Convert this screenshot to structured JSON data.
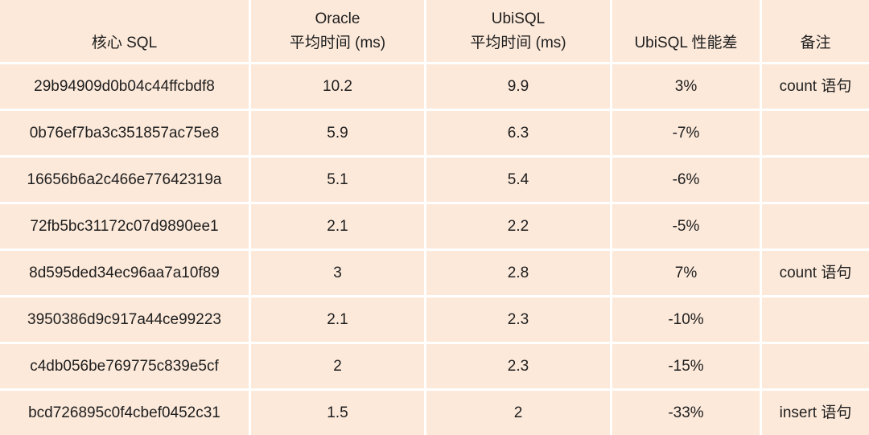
{
  "table": {
    "header": [
      "核心 SQL",
      "Oracle\n平均时间 (ms)",
      "UbiSQL\n平均时间 (ms)",
      "UbiSQL 性能差",
      "备注"
    ],
    "rows": [
      {
        "sql": "29b94909d0b04c44ffcbdf8",
        "oracle": "10.2",
        "ubisql": "9.9",
        "diff": "3%",
        "note": "count 语句"
      },
      {
        "sql": "0b76ef7ba3c351857ac75e8",
        "oracle": "5.9",
        "ubisql": "6.3",
        "diff": "-7%"
      },
      {
        "sql": "16656b6a2c466e77642319a",
        "oracle": "5.1",
        "ubisql": "5.4",
        "diff": "-6%"
      },
      {
        "sql": "72fb5bc31172c07d9890ee1",
        "oracle": "2.1",
        "ubisql": "2.2",
        "diff": "-5%"
      },
      {
        "sql": "8d595ded34ec96aa7a10f89",
        "oracle": "3",
        "ubisql": "2.8",
        "diff": "7%",
        "note": "count 语句"
      },
      {
        "sql": "3950386d9c917a44ce99223",
        "oracle": "2.1",
        "ubisql": "2.3",
        "diff": "-10%"
      },
      {
        "sql": "c4db056be769775c839e5cf",
        "oracle": "2",
        "ubisql": "2.3",
        "diff": "-15%"
      },
      {
        "sql": "bcd726895c0f4cbef0452c31",
        "oracle": "1.5",
        "ubisql": "2",
        "diff": "-33%",
        "note": "insert 语句"
      }
    ]
  }
}
